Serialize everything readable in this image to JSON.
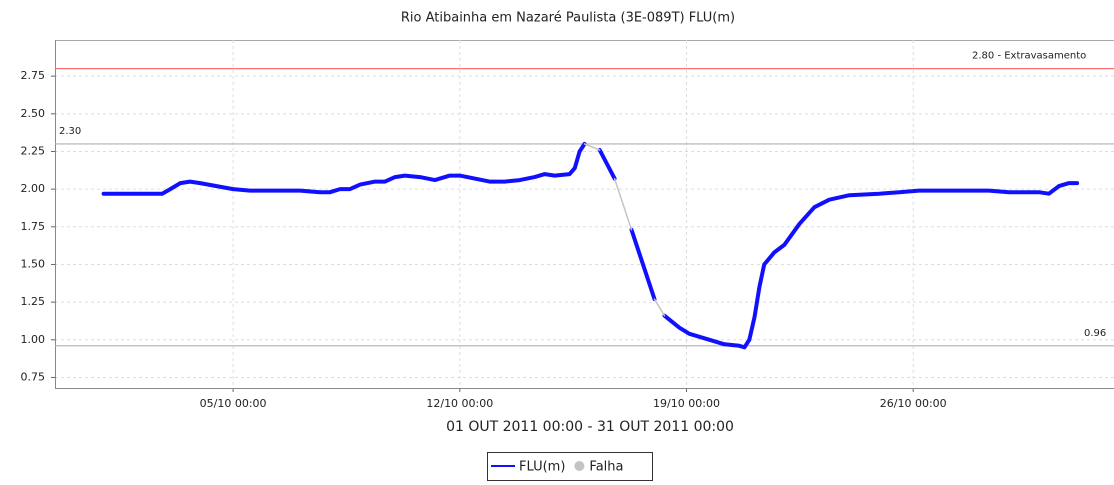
{
  "chart_data": {
    "type": "line",
    "title": "Rio Atibainha em Nazaré Paulista (3E-089T) FLU(m)",
    "x_label": "01 OUT 2011 00:00 - 31 OUT 2011 00:00",
    "xlim": [
      -0.5,
      32.2
    ],
    "xticks": [
      {
        "value": 5,
        "label": "05/10 00:00"
      },
      {
        "value": 12,
        "label": "12/10 00:00"
      },
      {
        "value": 19,
        "label": "19/10 00:00"
      },
      {
        "value": 26,
        "label": "26/10 00:00"
      }
    ],
    "ylim": [
      0.68,
      2.99
    ],
    "yticks": [
      0.75,
      {
        "value": 1.0,
        "label": "1.00"
      },
      1.25,
      {
        "value": 1.5,
        "label": "1.50"
      },
      1.75,
      {
        "value": 2.0,
        "label": "2.00"
      },
      2.25,
      {
        "value": 2.5,
        "label": "2.50"
      },
      2.75
    ],
    "grid": true,
    "reference_lines": [
      {
        "value": 2.8,
        "label": "2.80 - Extravasamento",
        "color": "#ff7070",
        "label_position": "right"
      },
      {
        "value": 2.3,
        "label": "2.30",
        "color": "#b0b0b0",
        "label_position": "left"
      },
      {
        "value": 0.96,
        "label": "0.96",
        "color": "#b0b0b0",
        "label_position": "right"
      }
    ],
    "series": [
      {
        "name": "FLU(m)",
        "color": "#1010ff",
        "x": [
          1.0,
          2.81,
          3.06,
          3.37,
          3.67,
          3.98,
          5.0,
          5.52,
          7.07,
          7.68,
          7.99,
          8.3,
          8.61,
          8.92,
          9.38,
          9.69,
          10.0,
          10.3,
          10.77,
          11.23,
          11.69,
          12.0,
          12.46,
          12.92,
          13.39,
          13.85,
          14.31,
          14.62,
          14.93,
          15.39,
          15.55,
          15.7,
          15.85,
          16.1,
          16.32,
          16.78,
          17.04,
          17.3,
          18.01,
          18.17,
          18.32,
          18.78,
          19.09,
          19.71,
          20.17,
          20.63,
          20.79,
          20.94,
          21.1,
          21.25,
          21.4,
          21.71,
          22.02,
          22.49,
          22.95,
          23.41,
          24.03,
          24.95,
          25.57,
          26.18,
          27.42,
          28.34,
          28.96,
          29.88,
          30.19,
          30.5,
          30.81,
          31.06
        ],
        "values": [
          1.97,
          1.97,
          2.0,
          2.04,
          2.05,
          2.04,
          2.0,
          1.99,
          1.99,
          1.98,
          1.98,
          2.0,
          2.0,
          2.03,
          2.05,
          2.05,
          2.08,
          2.09,
          2.08,
          2.06,
          2.09,
          2.09,
          2.07,
          2.05,
          2.05,
          2.06,
          2.08,
          2.1,
          2.09,
          2.1,
          2.14,
          2.25,
          2.3,
          null,
          2.26,
          2.07,
          null,
          1.73,
          1.27,
          null,
          1.16,
          1.08,
          1.04,
          1.0,
          0.97,
          0.96,
          0.95,
          1.0,
          1.15,
          1.35,
          1.5,
          1.58,
          1.63,
          1.77,
          1.88,
          1.93,
          1.96,
          1.97,
          1.98,
          1.99,
          1.99,
          1.99,
          1.98,
          1.98,
          1.97,
          2.02,
          2.04,
          2.04
        ]
      },
      {
        "name": "Falha",
        "color": "#c4c4c4",
        "x": [
          15.85,
          16.32,
          16.55,
          16.78,
          17.3,
          17.65,
          18.01,
          18.32
        ],
        "values": [
          2.3,
          2.26,
          null,
          2.07,
          1.73,
          null,
          1.27,
          1.16
        ]
      }
    ]
  }
}
